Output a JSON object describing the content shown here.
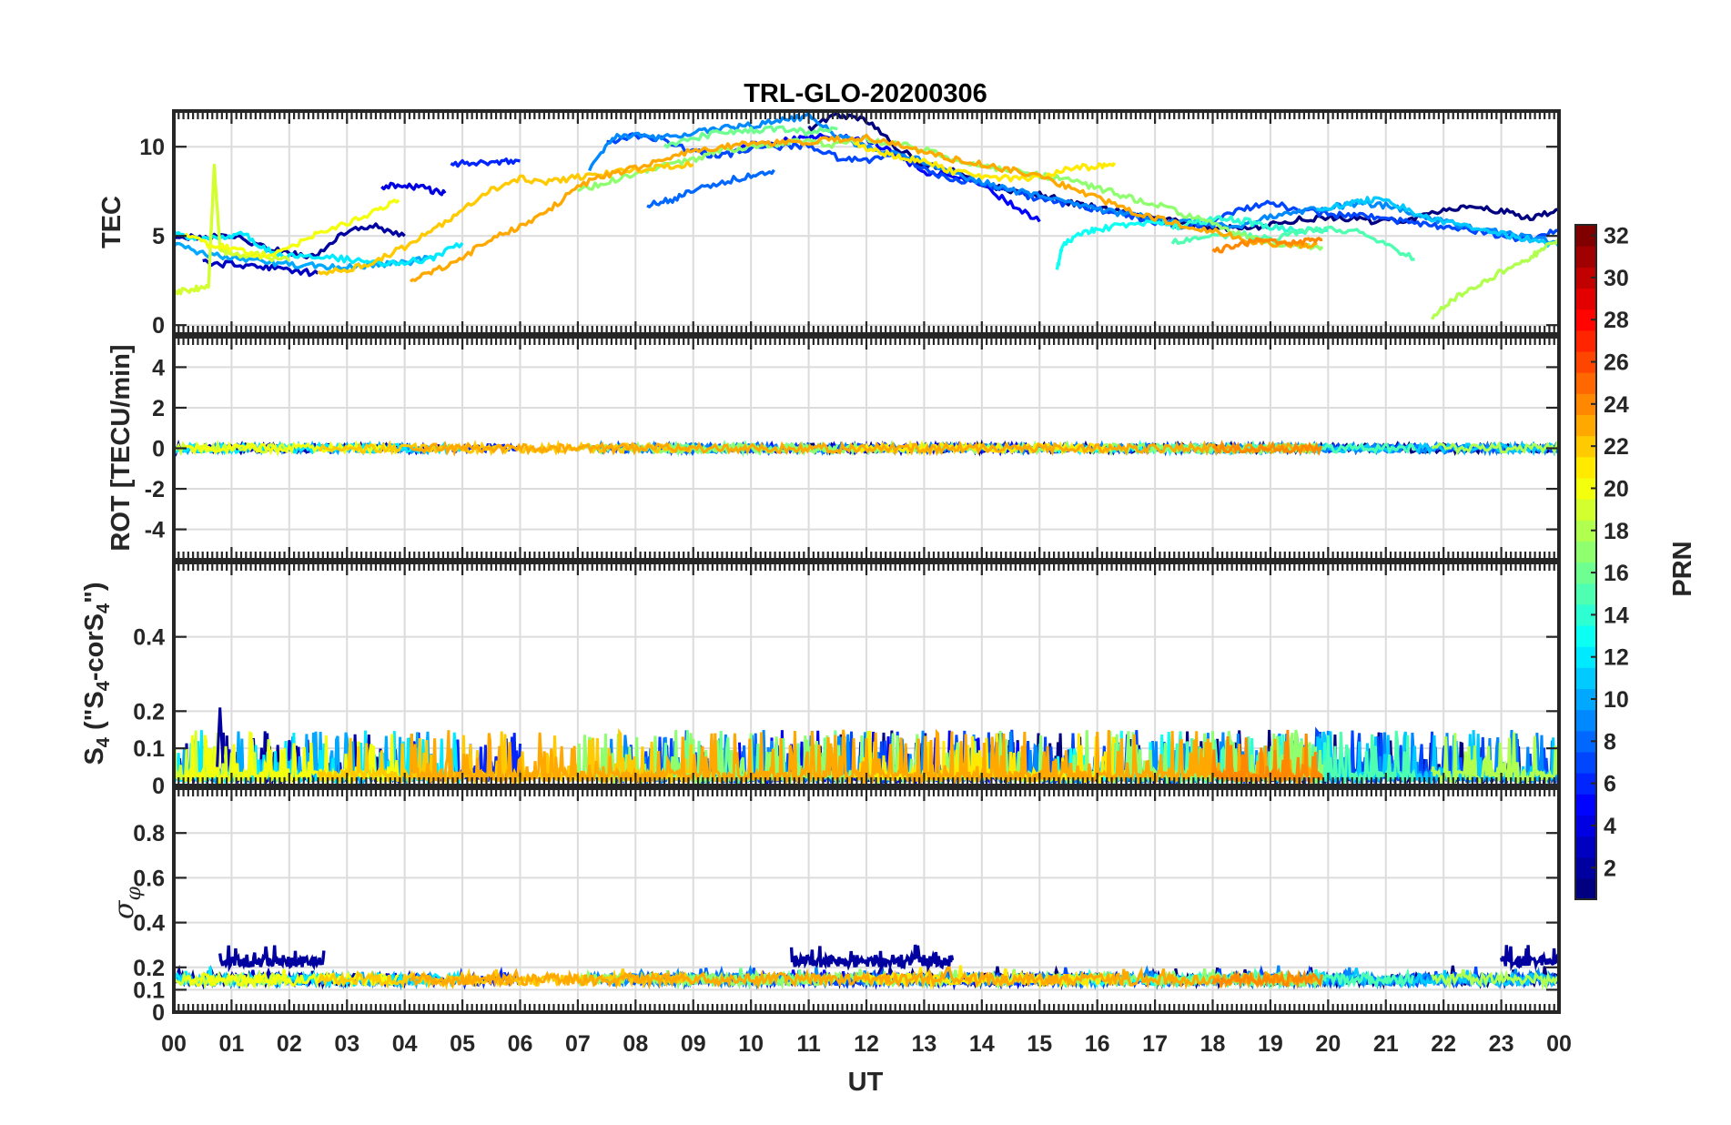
{
  "chart_data": {
    "type": "line",
    "title": "TRL-GLO-20200306",
    "xlabel": "UT",
    "x_tick_labels": [
      "00",
      "01",
      "02",
      "03",
      "04",
      "05",
      "06",
      "07",
      "08",
      "09",
      "10",
      "11",
      "12",
      "13",
      "14",
      "15",
      "16",
      "17",
      "18",
      "19",
      "20",
      "21",
      "22",
      "23",
      "00"
    ],
    "xlim": [
      0,
      24
    ],
    "grid": true,
    "colorbar": {
      "label": "PRN",
      "range": [
        1,
        32
      ],
      "ticks": [
        2,
        4,
        6,
        8,
        10,
        12,
        14,
        16,
        18,
        20,
        22,
        24,
        26,
        28,
        30,
        32
      ],
      "colormap": "jet"
    },
    "panels": [
      {
        "ylabel": "TEC",
        "ylim": [
          -0.5,
          12
        ],
        "yticks": [
          0,
          5,
          10
        ],
        "series": [
          {
            "prn": 1,
            "x": [
              11.0,
              11.5,
              12.0,
              12.5,
              13.0,
              13.5,
              14.0,
              14.5,
              15.0,
              15.5,
              16.0,
              16.5,
              17.0,
              17.5,
              18.0,
              18.5,
              19.0,
              19.5,
              20.0,
              20.5,
              21.0,
              21.5,
              22.0,
              22.5,
              23.0,
              23.5,
              24.0
            ],
            "y": [
              11.0,
              11.8,
              11.5,
              10.0,
              9.0,
              8.6,
              8.0,
              7.5,
              7.3,
              6.9,
              6.6,
              6.3,
              6.0,
              5.7,
              5.5,
              5.4,
              5.6,
              5.9,
              6.1,
              5.9,
              5.8,
              6.0,
              6.5,
              6.6,
              6.4,
              6.0,
              6.5
            ]
          },
          {
            "prn": 2,
            "x": [
              0.0,
              0.5,
              1.0,
              1.5,
              2.0,
              2.5,
              3.0,
              3.5,
              4.0
            ],
            "y": [
              5.0,
              4.9,
              5.0,
              4.4,
              4.0,
              3.9,
              5.3,
              5.5,
              5.0
            ]
          },
          {
            "prn": 3,
            "x": [
              0.5,
              1.0,
              1.5,
              2.0,
              2.5
            ],
            "y": [
              3.5,
              3.4,
              3.3,
              3.1,
              2.9
            ]
          },
          {
            "prn": 4,
            "x": [
              3.6,
              4.0,
              4.4,
              4.7
            ],
            "y": [
              7.8,
              7.9,
              7.6,
              7.4
            ]
          },
          {
            "prn": 5,
            "x": [
              9.8,
              10.5,
              11.0,
              11.5,
              12.0,
              12.5,
              13.0,
              13.5,
              14.0,
              14.5,
              15.0
            ],
            "y": [
              10.0,
              10.3,
              10.6,
              10.5,
              10.4,
              9.6,
              8.6,
              8.4,
              7.8,
              6.8,
              5.8
            ]
          },
          {
            "prn": 6,
            "x": [
              4.8,
              5.2,
              5.6,
              6.0
            ],
            "y": [
              9.0,
              9.1,
              9.2,
              9.2
            ]
          },
          {
            "prn": 7,
            "x": [
              7.5,
              8.0,
              8.5,
              9.0,
              9.5,
              10.0,
              10.5,
              11.0,
              11.5,
              12.0,
              12.5,
              13.0,
              13.5,
              14.0,
              14.5,
              15.0,
              15.5,
              16.0,
              16.5,
              17.0,
              17.5,
              18.0,
              18.5,
              19.0,
              19.5,
              20.0,
              20.5,
              21.0,
              21.5,
              22.0,
              22.5,
              23.0,
              23.5,
              24.0
            ],
            "y": [
              10.2,
              10.6,
              10.4,
              9.7,
              9.5,
              9.9,
              10.0,
              10.1,
              9.4,
              9.2,
              9.6,
              8.7,
              8.2,
              7.9,
              7.5,
              7.0,
              6.8,
              6.5,
              6.2,
              5.8,
              5.5,
              5.8,
              6.5,
              6.8,
              6.5,
              6.2,
              6.1,
              6.0,
              5.7,
              5.5,
              5.3,
              5.0,
              4.8,
              5.3
            ]
          },
          {
            "prn": 8,
            "x": [
              8.2,
              8.6,
              9.0,
              9.5,
              10.0,
              10.4
            ],
            "y": [
              6.7,
              7.0,
              7.5,
              8.0,
              8.4,
              8.7
            ]
          },
          {
            "prn": 9,
            "x": [
              7.2,
              7.6,
              8.0,
              8.5,
              9.0,
              9.5,
              10.0,
              10.5,
              11.0,
              11.5,
              12.0,
              12.5,
              13.0,
              13.5,
              14.0,
              14.5,
              15.0,
              15.5,
              16.0,
              16.5,
              17.0,
              17.5,
              18.0,
              18.5,
              19.0,
              19.5,
              20.0,
              20.5,
              21.0,
              21.5,
              22.0,
              22.5,
              23.0,
              23.5,
              24.0
            ],
            "y": [
              8.8,
              10.5,
              10.6,
              10.5,
              10.8,
              11.0,
              11.2,
              11.5,
              11.7,
              10.6,
              10.0,
              9.6,
              9.2,
              8.5,
              8.0,
              7.6,
              7.2,
              6.8,
              6.5,
              6.2,
              6.0,
              5.8,
              5.6,
              5.5,
              6.1,
              6.3,
              6.6,
              6.8,
              6.7,
              6.3,
              5.8,
              5.5,
              5.2,
              4.9,
              4.6
            ]
          },
          {
            "prn": 10,
            "x": [
              0.0,
              0.5,
              1.0,
              1.5,
              2.0,
              2.5,
              3.0,
              3.5,
              4.0,
              4.5
            ],
            "y": [
              4.5,
              4.0,
              3.8,
              3.6,
              3.4,
              3.3,
              3.3,
              3.4,
              3.5,
              3.8
            ]
          },
          {
            "prn": 11,
            "x": [
              19.8,
              20.3,
              20.6,
              21.0,
              21.5,
              22.0,
              22.5,
              23.0,
              23.5,
              24.0
            ],
            "y": [
              6.5,
              6.7,
              7.0,
              7.0,
              6.3,
              5.8,
              5.5,
              5.1,
              4.8,
              4.4
            ]
          },
          {
            "prn": 12,
            "x": [
              0.0,
              0.4,
              0.8,
              1.2,
              1.6,
              2.0,
              2.5,
              3.0,
              3.5,
              4.0,
              4.5,
              5.0
            ],
            "y": [
              5.2,
              4.8,
              4.9,
              5.1,
              4.2,
              3.9,
              3.8,
              3.7,
              3.5,
              3.5,
              3.8,
              4.6
            ]
          },
          {
            "prn": 13,
            "x": [
              15.3,
              15.4,
              15.7,
              16.0,
              16.5,
              17.0,
              17.4
            ],
            "y": [
              3.0,
              4.5,
              5.2,
              5.4,
              5.6,
              5.8,
              5.7
            ]
          },
          {
            "prn": 14,
            "x": [
              17.3,
              17.8,
              18.2,
              18.6,
              19.0,
              19.5,
              20.0
            ],
            "y": [
              5.5,
              5.8,
              6.0,
              5.8,
              5.5,
              5.3,
              5.3
            ]
          },
          {
            "prn": 15,
            "x": [
              17.3,
              17.8,
              18.5,
              19.0,
              19.5,
              20.0,
              20.5,
              21.0,
              21.5
            ],
            "y": [
              4.6,
              5.0,
              5.1,
              4.8,
              5.2,
              5.4,
              5.2,
              4.5,
              3.7
            ]
          },
          {
            "prn": 16,
            "x": [
              8.5,
              9.0,
              9.5,
              10.0,
              10.5,
              11.0,
              11.5
            ],
            "y": [
              10.0,
              10.5,
              10.8,
              10.9,
              11.0,
              10.8,
              11.0
            ]
          },
          {
            "prn": 17,
            "x": [
              7.0,
              7.5,
              8.0,
              8.5,
              9.0,
              9.5,
              10.0,
              10.5,
              11.0,
              11.5,
              12.0,
              12.5,
              13.0,
              13.5,
              14.0,
              14.5,
              15.0,
              15.5,
              16.0,
              16.5,
              17.0,
              17.5,
              18.0,
              18.5,
              19.0,
              19.5,
              19.9
            ],
            "y": [
              7.5,
              8.0,
              8.5,
              9.0,
              9.3,
              9.8,
              10.0,
              10.2,
              10.3,
              10.1,
              10.4,
              10.2,
              9.9,
              9.3,
              8.9,
              8.7,
              8.4,
              8.1,
              7.7,
              7.2,
              6.8,
              6.2,
              5.7,
              5.0,
              4.6,
              4.5,
              4.4
            ]
          },
          {
            "prn": 18,
            "x": [
              21.8,
              22.2,
              22.6,
              23.0,
              23.4,
              23.7,
              24.0
            ],
            "y": [
              0.5,
              1.5,
              2.2,
              3.0,
              3.6,
              4.2,
              4.8
            ]
          },
          {
            "prn": 19,
            "x": [
              0.0,
              0.3,
              0.6,
              0.7,
              0.8,
              1.0,
              1.5,
              2.0
            ],
            "y": [
              1.8,
              2.0,
              2.1,
              9.0,
              4.2,
              4.0,
              3.9,
              3.6
            ]
          },
          {
            "prn": 20,
            "x": [
              0.2,
              0.6,
              1.0,
              1.5,
              2.0,
              2.5,
              3.0,
              3.5,
              3.9
            ],
            "y": [
              5.0,
              4.5,
              4.3,
              3.9,
              4.3,
              5.2,
              5.7,
              6.4,
              7.0
            ]
          },
          {
            "prn": 21,
            "x": [
              11.8,
              12.2,
              12.6,
              13.0,
              13.5,
              14.0,
              14.5,
              15.0,
              15.5,
              16.0,
              16.3
            ],
            "y": [
              10.2,
              9.7,
              9.4,
              9.2,
              8.6,
              8.4,
              8.2,
              8.3,
              8.8,
              8.9,
              9.1
            ]
          },
          {
            "prn": 22,
            "x": [
              2.5,
              3.0,
              3.5,
              4.0,
              4.5,
              5.0,
              5.5,
              6.0,
              6.5,
              7.0,
              7.5,
              8.0,
              8.5,
              9.0
            ],
            "y": [
              3.0,
              3.1,
              3.6,
              4.4,
              5.3,
              6.5,
              7.6,
              8.2,
              8.0,
              8.3,
              8.5,
              8.7,
              8.9,
              9.0
            ]
          },
          {
            "prn": 23,
            "x": [
              4.1,
              4.5,
              5.0,
              5.5,
              6.0,
              6.5,
              7.0,
              7.5,
              8.0,
              8.5,
              9.0,
              9.5,
              10.0,
              10.5,
              11.0,
              11.5,
              12.0,
              12.5,
              13.0,
              13.5,
              14.0,
              14.5,
              15.0,
              15.5,
              16.0,
              16.5,
              17.0,
              17.5,
              18.0,
              18.5,
              19.0,
              19.5,
              19.8
            ],
            "y": [
              2.4,
              3.0,
              3.8,
              4.8,
              5.5,
              6.4,
              7.8,
              8.4,
              8.8,
              9.4,
              9.8,
              10.0,
              10.2,
              10.2,
              10.3,
              10.4,
              10.5,
              10.2,
              9.7,
              9.3,
              9.0,
              8.7,
              8.4,
              7.7,
              7.1,
              6.5,
              6.0,
              5.6,
              5.3,
              4.8,
              4.6,
              4.5,
              4.5
            ]
          },
          {
            "prn": 24,
            "x": [
              18.0,
              18.4,
              18.8,
              19.2,
              19.6,
              19.9
            ],
            "y": [
              4.1,
              4.5,
              4.7,
              4.6,
              4.7,
              4.8
            ]
          }
        ]
      },
      {
        "ylabel": "ROT [TECU/min]",
        "ylim": [
          -5.5,
          5.5
        ],
        "yticks": [
          -4,
          -2,
          0,
          2,
          4
        ],
        "noise_band": [
          -0.3,
          0.4
        ]
      },
      {
        "ylabel": "S4 (\"S4-corS4\")",
        "ylim": [
          0,
          0.6
        ],
        "yticks": [
          0,
          0.1,
          0.2,
          0.4
        ],
        "tick_labels": [
          "0",
          "0.1",
          "0.2",
          "0.4"
        ],
        "baseline": 0.03,
        "typical_max": 0.15,
        "peak": {
          "x": 0.8,
          "y": 0.21
        }
      },
      {
        "ylabel": "σφ",
        "ylim": [
          0,
          1
        ],
        "yticks": [
          0,
          0.1,
          0.2,
          0.4,
          0.6,
          0.8
        ],
        "tick_labels": [
          "0",
          "0.1",
          "0.2",
          "0.4",
          "0.6",
          "0.8"
        ],
        "baseline": [
          0.12,
          0.17
        ],
        "elevated_segments": [
          {
            "prn": 2,
            "x": [
              0.8,
              2.6
            ],
            "y": [
              0.2,
              0.3
            ]
          },
          {
            "prn": 2,
            "x": [
              10.7,
              13.5
            ],
            "y": [
              0.2,
              0.31
            ]
          },
          {
            "prn": 2,
            "x": [
              23.0,
              24.0
            ],
            "y": [
              0.2,
              0.3
            ]
          }
        ]
      }
    ]
  }
}
